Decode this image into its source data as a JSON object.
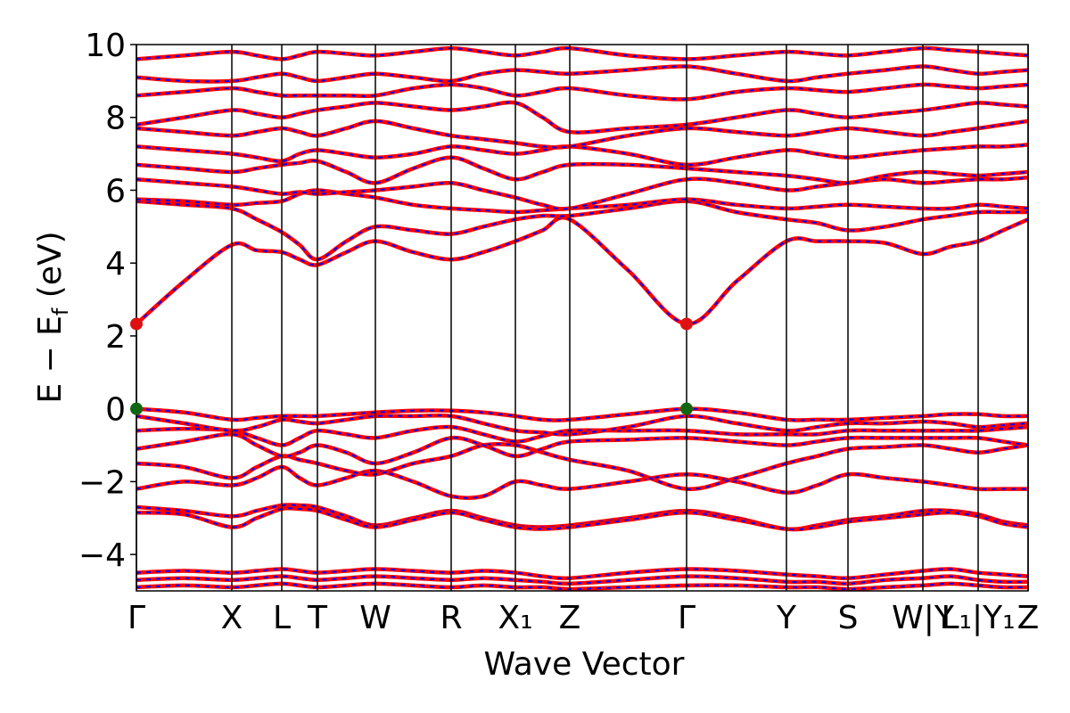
{
  "chart_data": {
    "type": "band-structure",
    "xlabel": "Wave Vector",
    "ylabel": [
      "E − E",
      "f",
      " (eV)"
    ],
    "xlim": [
      0,
      10
    ],
    "ylim": [
      -5,
      10
    ],
    "xticks": [
      {
        "value": 0,
        "label": "Γ"
      },
      {
        "value": 1.07,
        "label": "X"
      },
      {
        "value": 1.63,
        "label": "L"
      },
      {
        "value": 2.03,
        "label": "T"
      },
      {
        "value": 2.68,
        "label": "W"
      },
      {
        "value": 3.53,
        "label": "R"
      },
      {
        "value": 4.25,
        "label": "X₁"
      },
      {
        "value": 4.86,
        "label": "Z"
      },
      {
        "value": 6.17,
        "label": "Γ"
      },
      {
        "value": 7.29,
        "label": "Y"
      },
      {
        "value": 7.98,
        "label": "S"
      },
      {
        "value": 8.82,
        "label": "W|Y"
      },
      {
        "value": 9.44,
        "label": "L₁|Y₁"
      },
      {
        "value": 10,
        "label": "Z"
      }
    ],
    "yticks": [
      {
        "value": -4,
        "label": "−4"
      },
      {
        "value": -2,
        "label": "−2"
      },
      0,
      2,
      4,
      6,
      8,
      10
    ],
    "line_color": "#ff0000",
    "dash_color": "#0000ff",
    "x": [
      0,
      0.535,
      1.07,
      1.35,
      1.63,
      1.83,
      2.03,
      2.355,
      2.68,
      3.105,
      3.53,
      3.89,
      4.25,
      4.555,
      4.86,
      5.515,
      6.17,
      6.73,
      7.29,
      7.635,
      7.98,
      8.4,
      8.82,
      9.13,
      9.44,
      9.72,
      10
    ],
    "series": [
      {
        "values": [
          -4.5,
          -4.45,
          -4.5,
          -4.45,
          -4.4,
          -4.45,
          -4.5,
          -4.45,
          -4.4,
          -4.45,
          -4.5,
          -4.45,
          -4.5,
          -4.6,
          -4.65,
          -4.5,
          -4.4,
          -4.45,
          -4.55,
          -4.6,
          -4.65,
          -4.55,
          -4.45,
          -4.4,
          -4.5,
          -4.55,
          -4.6
        ]
      },
      {
        "values": [
          -4.7,
          -4.65,
          -4.7,
          -4.65,
          -4.6,
          -4.65,
          -4.7,
          -4.65,
          -4.6,
          -4.65,
          -4.7,
          -4.65,
          -4.7,
          -4.75,
          -4.8,
          -4.7,
          -4.6,
          -4.65,
          -4.75,
          -4.75,
          -4.8,
          -4.7,
          -4.65,
          -4.6,
          -4.7,
          -4.75,
          -4.75
        ]
      },
      {
        "values": [
          -4.9,
          -4.85,
          -4.9,
          -4.85,
          -4.8,
          -4.85,
          -4.9,
          -4.85,
          -4.8,
          -4.85,
          -4.9,
          -4.85,
          -4.9,
          -4.9,
          -4.95,
          -4.9,
          -4.85,
          -4.85,
          -4.9,
          -4.9,
          -4.95,
          -4.9,
          -4.85,
          -4.8,
          -4.85,
          -4.9,
          -4.9
        ]
      },
      {
        "values": [
          -2.7,
          -2.8,
          -2.95,
          -2.8,
          -2.65,
          -2.65,
          -2.7,
          -2.95,
          -3.2,
          -3.0,
          -2.8,
          -3.0,
          -3.2,
          -3.25,
          -3.2,
          -3.0,
          -2.8,
          -3.0,
          -3.3,
          -3.2,
          -3.05,
          -2.95,
          -2.8,
          -2.8,
          -2.9,
          -3.1,
          -3.2
        ]
      },
      {
        "values": [
          -2.85,
          -2.9,
          -3.25,
          -3.0,
          -2.75,
          -2.75,
          -2.8,
          -3.05,
          -3.25,
          -3.05,
          -2.85,
          -3.05,
          -3.25,
          -3.3,
          -3.25,
          -3.05,
          -2.85,
          -3.05,
          -3.3,
          -3.25,
          -3.1,
          -3.0,
          -2.9,
          -2.85,
          -2.95,
          -3.15,
          -3.25
        ]
      },
      {
        "values": [
          -2.2,
          -2.0,
          -2.1,
          -1.9,
          -1.6,
          -1.9,
          -2.1,
          -1.9,
          -1.7,
          -2.0,
          -2.4,
          -2.4,
          -2.0,
          -2.1,
          -2.2,
          -2.0,
          -1.8,
          -2.0,
          -2.3,
          -2.1,
          -1.8,
          -1.9,
          -2.0,
          -2.1,
          -2.2,
          -2.2,
          -2.2
        ]
      },
      {
        "values": [
          -1.5,
          -1.6,
          -1.9,
          -1.6,
          -1.3,
          -1.4,
          -1.5,
          -1.7,
          -1.8,
          -1.5,
          -1.3,
          -1.0,
          -1.0,
          -1.2,
          -1.4,
          -1.7,
          -2.2,
          -1.9,
          -1.5,
          -1.3,
          -1.1,
          -1.05,
          -1.0,
          -1.1,
          -1.2,
          -1.1,
          -1.0
        ]
      },
      {
        "values": [
          -1.1,
          -0.9,
          -0.7,
          -1.0,
          -1.3,
          -1.2,
          -1.0,
          -1.2,
          -1.5,
          -1.2,
          -0.8,
          -1.0,
          -1.3,
          -1.1,
          -0.9,
          -0.85,
          -0.8,
          -0.9,
          -1.0,
          -0.9,
          -0.8,
          -0.8,
          -0.8,
          -0.8,
          -0.8,
          -0.9,
          -1.0
        ]
      },
      {
        "values": [
          -0.6,
          -0.55,
          -0.6,
          -0.8,
          -1.0,
          -0.8,
          -0.6,
          -0.7,
          -0.8,
          -0.6,
          -0.5,
          -0.7,
          -0.9,
          -0.75,
          -0.6,
          -0.6,
          -0.6,
          -0.7,
          -0.7,
          -0.7,
          -0.6,
          -0.6,
          -0.6,
          -0.6,
          -0.6,
          -0.55,
          -0.5
        ]
      },
      {
        "values": [
          -0.2,
          -0.4,
          -0.6,
          -0.5,
          -0.3,
          -0.35,
          -0.4,
          -0.3,
          -0.2,
          -0.2,
          -0.2,
          -0.4,
          -0.6,
          -0.65,
          -0.7,
          -0.5,
          -0.2,
          -0.4,
          -0.6,
          -0.5,
          -0.4,
          -0.4,
          -0.35,
          -0.4,
          -0.5,
          -0.45,
          -0.4
        ]
      },
      {
        "values": [
          0,
          -0.1,
          -0.3,
          -0.25,
          -0.2,
          -0.2,
          -0.2,
          -0.15,
          -0.1,
          -0.05,
          -0.05,
          -0.1,
          -0.2,
          -0.3,
          -0.3,
          -0.15,
          0,
          -0.1,
          -0.3,
          -0.3,
          -0.3,
          -0.25,
          -0.2,
          -0.15,
          -0.15,
          -0.2,
          -0.2
        ]
      },
      {
        "values": [
          2.33,
          3.5,
          4.5,
          4.35,
          4.3,
          4.1,
          3.95,
          4.3,
          4.6,
          4.3,
          4.1,
          4.3,
          4.6,
          4.9,
          5.2,
          3.8,
          2.33,
          3.5,
          4.6,
          4.6,
          4.6,
          4.55,
          4.25,
          4.45,
          4.6,
          4.9,
          5.2
        ]
      },
      {
        "values": [
          5.7,
          5.6,
          5.5,
          5.2,
          4.85,
          4.5,
          4.1,
          4.6,
          5.0,
          4.9,
          4.8,
          5.0,
          5.2,
          5.3,
          5.3,
          5.5,
          5.7,
          5.4,
          5.2,
          5.1,
          4.9,
          5.0,
          5.2,
          5.3,
          5.4,
          5.4,
          5.4
        ]
      },
      {
        "values": [
          5.75,
          5.7,
          5.6,
          5.65,
          5.7,
          5.9,
          6.0,
          5.9,
          5.8,
          5.6,
          5.5,
          5.45,
          5.4,
          5.45,
          5.5,
          5.6,
          5.75,
          5.6,
          5.5,
          5.55,
          5.6,
          5.55,
          5.5,
          5.5,
          5.6,
          5.55,
          5.5
        ]
      },
      {
        "values": [
          6.3,
          6.2,
          6.1,
          6.0,
          5.9,
          5.95,
          5.9,
          5.95,
          6.0,
          6.1,
          6.2,
          6.0,
          5.8,
          5.6,
          5.5,
          5.9,
          6.3,
          6.2,
          6.0,
          6.1,
          6.2,
          6.3,
          6.2,
          6.25,
          6.3,
          6.3,
          6.35
        ]
      },
      {
        "values": [
          6.7,
          6.6,
          6.5,
          6.6,
          6.7,
          6.75,
          6.8,
          6.5,
          6.2,
          6.6,
          6.9,
          6.6,
          6.3,
          6.5,
          6.7,
          6.7,
          6.6,
          6.5,
          6.4,
          6.3,
          6.2,
          6.4,
          6.5,
          6.45,
          6.4,
          6.45,
          6.5
        ]
      },
      {
        "values": [
          7.2,
          7.1,
          7.0,
          6.9,
          6.8,
          7.0,
          7.1,
          7.0,
          6.9,
          7.0,
          7.2,
          7.1,
          7.0,
          7.1,
          7.2,
          7.0,
          6.7,
          6.9,
          7.1,
          7.0,
          6.9,
          7.0,
          7.1,
          7.15,
          7.2,
          7.2,
          7.25
        ]
      },
      {
        "values": [
          7.7,
          7.6,
          7.5,
          7.6,
          7.7,
          7.6,
          7.5,
          7.7,
          7.9,
          7.7,
          7.5,
          7.4,
          7.3,
          7.2,
          7.2,
          7.5,
          7.7,
          7.6,
          7.5,
          7.6,
          7.7,
          7.6,
          7.5,
          7.6,
          7.7,
          7.8,
          7.9
        ]
      },
      {
        "values": [
          7.8,
          8.0,
          8.2,
          8.1,
          8.0,
          8.1,
          8.2,
          8.3,
          8.4,
          8.3,
          8.2,
          8.3,
          8.4,
          8.0,
          7.6,
          7.7,
          7.8,
          8.0,
          8.2,
          8.1,
          8.0,
          8.1,
          8.2,
          8.3,
          8.4,
          8.35,
          8.3
        ]
      },
      {
        "values": [
          8.6,
          8.7,
          8.8,
          8.7,
          8.6,
          8.6,
          8.6,
          8.6,
          8.6,
          8.8,
          8.9,
          8.8,
          8.6,
          8.7,
          8.8,
          8.6,
          8.5,
          8.7,
          8.8,
          8.75,
          8.7,
          8.8,
          8.9,
          8.85,
          8.8,
          8.85,
          8.9
        ]
      },
      {
        "values": [
          9.1,
          9.0,
          9.0,
          9.1,
          9.2,
          9.1,
          9.0,
          9.1,
          9.2,
          9.1,
          9.0,
          9.2,
          9.3,
          9.25,
          9.2,
          9.3,
          9.4,
          9.2,
          9.0,
          9.1,
          9.2,
          9.3,
          9.4,
          9.3,
          9.2,
          9.25,
          9.3
        ]
      },
      {
        "values": [
          9.6,
          9.7,
          9.8,
          9.7,
          9.6,
          9.7,
          9.8,
          9.75,
          9.7,
          9.8,
          9.9,
          9.8,
          9.7,
          9.8,
          9.9,
          9.7,
          9.6,
          9.7,
          9.8,
          9.75,
          9.7,
          9.8,
          9.9,
          9.85,
          9.8,
          9.75,
          9.7
        ]
      }
    ],
    "markers": [
      {
        "x": 0,
        "y": 2.33,
        "color": "#dd1111"
      },
      {
        "x": 6.17,
        "y": 2.33,
        "color": "#dd1111"
      },
      {
        "x": 0,
        "y": 0,
        "color": "#116611"
      },
      {
        "x": 6.17,
        "y": 0,
        "color": "#116611"
      }
    ]
  }
}
